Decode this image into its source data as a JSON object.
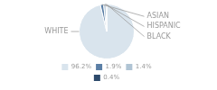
{
  "chart_data": {
    "type": "pie",
    "categories": [
      "WHITE",
      "ASIAN",
      "HISPANIC",
      "BLACK"
    ],
    "values": [
      96.2,
      1.9,
      1.4,
      0.4
    ],
    "value_labels": [
      "96.2%",
      "1.9%",
      "1.4%",
      "0.4%"
    ],
    "colors": [
      "#d9e4ed",
      "#5b7fa6",
      "#b0c4d4",
      "#2d4a6b"
    ],
    "legend": "bottom"
  }
}
